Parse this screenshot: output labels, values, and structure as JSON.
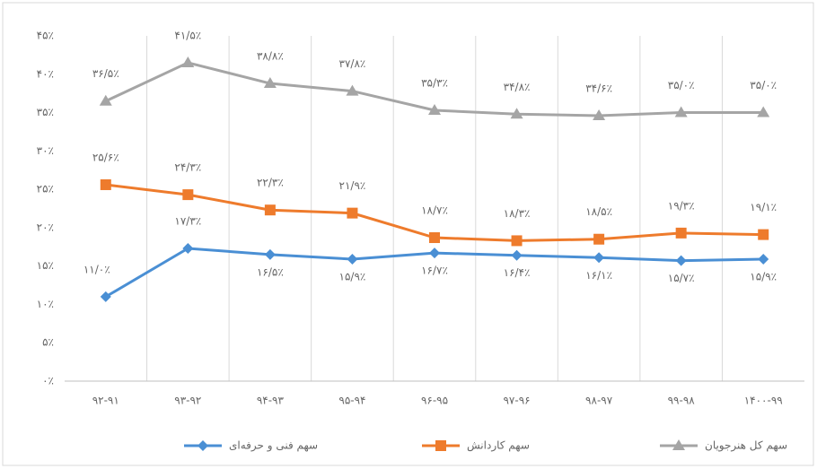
{
  "chart_data": {
    "type": "line",
    "categories": [
      "۹۲-۹۱",
      "۹۳-۹۲",
      "۹۴-۹۳",
      "۹۵-۹۴",
      "۹۶-۹۵",
      "۹۷-۹۶",
      "۹۸-۹۷",
      "۹۹-۹۸",
      "۱۴۰۰-۹۹"
    ],
    "series": [
      {
        "name": "سهم فنی و حرفه‌ای",
        "color": "#4a8fd4",
        "marker": "diamond",
        "values": [
          11.0,
          17.3,
          16.5,
          15.9,
          16.7,
          16.4,
          16.1,
          15.7,
          15.9
        ],
        "value_labels": [
          "۱۱/۰٪",
          "۱۷/۳٪",
          "۱۶/۵٪",
          "۱۵/۹٪",
          "۱۶/۷٪",
          "۱۶/۴٪",
          "۱۶/۱٪",
          "۱۵/۷٪",
          "۱۵/۹٪"
        ]
      },
      {
        "name": "سهم کاردانش",
        "color": "#ee7b2c",
        "marker": "square",
        "values": [
          25.6,
          24.3,
          22.3,
          21.9,
          18.7,
          18.3,
          18.5,
          19.3,
          19.1
        ],
        "value_labels": [
          "۲۵/۶٪",
          "۲۴/۳٪",
          "۲۲/۳٪",
          "۲۱/۹٪",
          "۱۸/۷٪",
          "۱۸/۳٪",
          "۱۸/۵٪",
          "۱۹/۳٪",
          "۱۹/۱٪"
        ]
      },
      {
        "name": "سهم کل هنرجویان",
        "color": "#a5a5a5",
        "marker": "triangle",
        "values": [
          36.5,
          41.5,
          38.8,
          37.8,
          35.3,
          34.8,
          34.6,
          35.0,
          35.0
        ],
        "value_labels": [
          "۳۶/۵٪",
          "۴۱/۵٪",
          "۳۸/۸٪",
          "۳۷/۸٪",
          "۳۵/۳٪",
          "۳۴/۸٪",
          "۳۴/۶٪",
          "۳۵/۰٪",
          "۳۵/۰٪"
        ]
      }
    ],
    "ylim": [
      0,
      45
    ],
    "yticks": [
      {
        "value": 0,
        "label": "۰٪"
      },
      {
        "value": 5,
        "label": "۵٪"
      },
      {
        "value": 10,
        "label": "۱۰٪"
      },
      {
        "value": 15,
        "label": "۱۵٪"
      },
      {
        "value": 20,
        "label": "۲۰٪"
      },
      {
        "value": 25,
        "label": "۲۵٪"
      },
      {
        "value": 30,
        "label": "۳۰٪"
      },
      {
        "value": 35,
        "label": "۳۵٪"
      },
      {
        "value": 40,
        "label": "۴۰٪"
      },
      {
        "value": 45,
        "label": "۴۵٪"
      }
    ],
    "legend": "bottom"
  }
}
